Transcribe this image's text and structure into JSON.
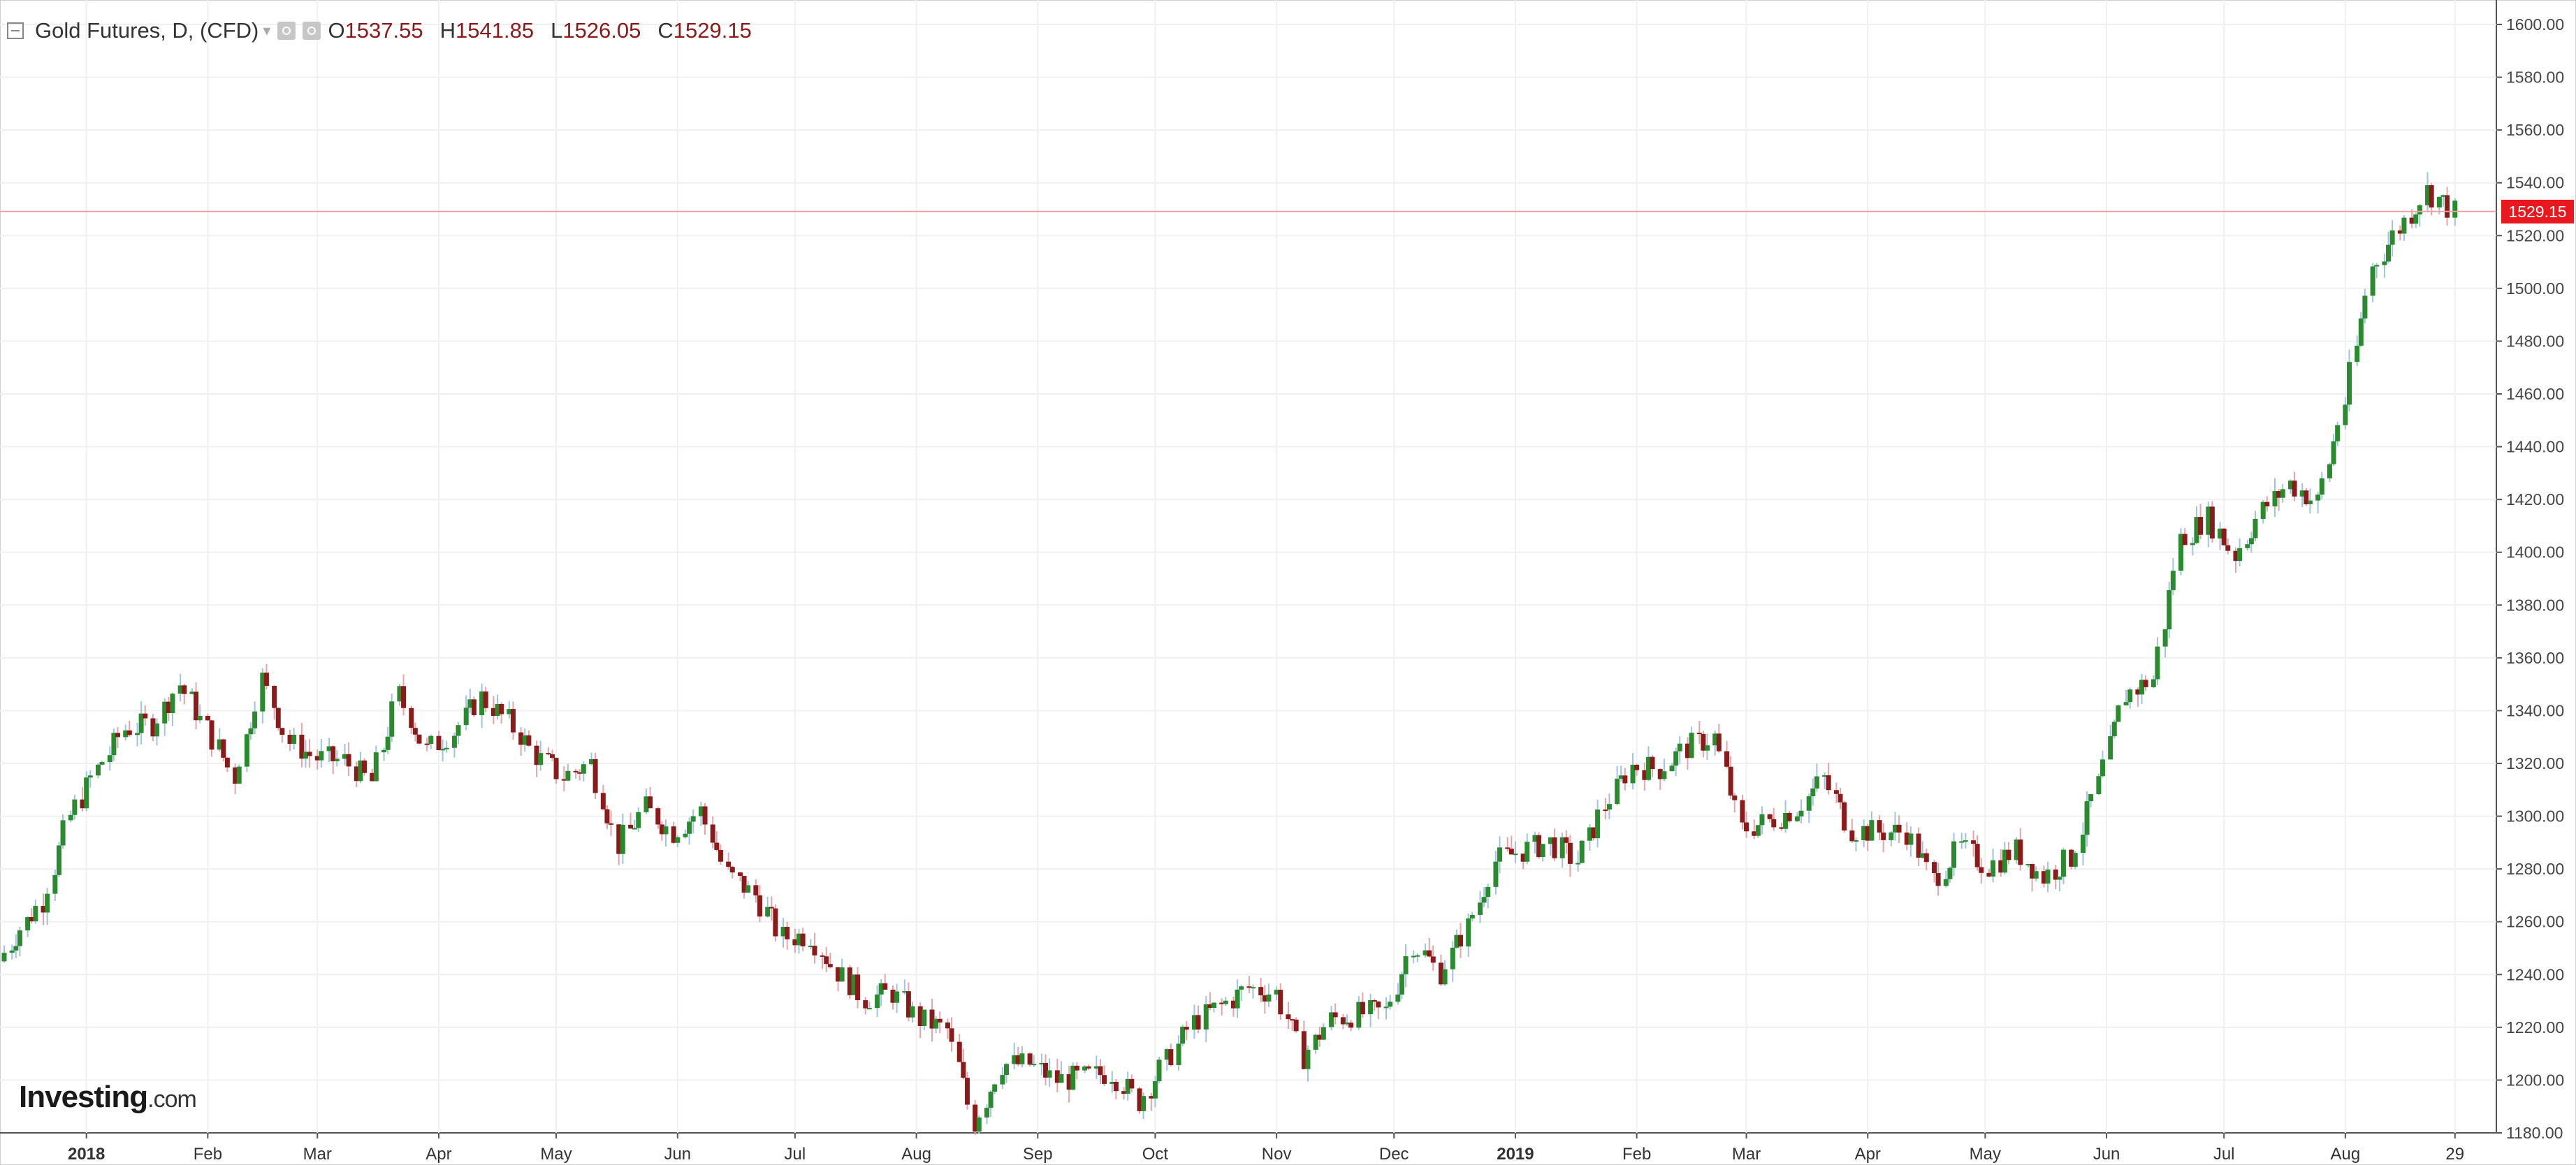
{
  "header": {
    "symbol": "Gold Futures, D, (CFD)",
    "open_label": "O",
    "open_value": "1537.55",
    "high_label": "H",
    "high_value": "1541.85",
    "low_label": "L",
    "low_value": "1526.05",
    "close_label": "C",
    "close_value": "1529.15"
  },
  "logo": {
    "brand": "Investing",
    "suffix": ".com"
  },
  "last_price_label": "1529.15",
  "colors": {
    "up": "#2a8a2e",
    "down": "#8b1a1a",
    "up_wick": "#9ec3e6",
    "down_wick": "#e8a3a8",
    "price_line": "#f0a0a0",
    "price_tag": "#e8181e"
  },
  "chart_data": {
    "type": "candlestick",
    "title": "Gold Futures, D, (CFD)",
    "x_axis": {
      "range": [
        "2017-12-11",
        "2019-09-05"
      ],
      "tick_labels": [
        "2018",
        "Feb",
        "Mar",
        "Apr",
        "May",
        "Jun",
        "Jul",
        "Aug",
        "Sep",
        "Oct",
        "Nov",
        "Dec",
        "2019",
        "Feb",
        "Mar",
        "Apr",
        "May",
        "Jun",
        "Jul",
        "Aug",
        "29"
      ],
      "tick_dates": [
        "2018-01-01",
        "2018-02-01",
        "2018-03-01",
        "2018-04-01",
        "2018-05-01",
        "2018-06-01",
        "2018-07-01",
        "2018-08-01",
        "2018-09-01",
        "2018-10-01",
        "2018-11-01",
        "2018-12-01",
        "2019-01-01",
        "2019-02-01",
        "2019-03-01",
        "2019-04-01",
        "2019-05-01",
        "2019-06-01",
        "2019-07-01",
        "2019-08-01",
        "2019-08-29"
      ]
    },
    "y_axis": {
      "position": "right",
      "range": [
        1180,
        1600
      ],
      "tick_labels": [
        "1180.00",
        "1200.00",
        "1220.00",
        "1240.00",
        "1260.00",
        "1280.00",
        "1300.00",
        "1320.00",
        "1340.00",
        "1360.00",
        "1380.00",
        "1400.00",
        "1420.00",
        "1440.00",
        "1460.00",
        "1480.00",
        "1500.00",
        "1520.00",
        "1540.00",
        "1560.00",
        "1580.00",
        "1600.00"
      ]
    },
    "grid": true,
    "last_price": 1529.15,
    "series_close": [
      {
        "date": "2017-12-11",
        "close": 1245
      },
      {
        "date": "2017-12-15",
        "close": 1255
      },
      {
        "date": "2017-12-22",
        "close": 1268
      },
      {
        "date": "2017-12-29",
        "close": 1300
      },
      {
        "date": "2018-01-05",
        "close": 1318
      },
      {
        "date": "2018-01-12",
        "close": 1333
      },
      {
        "date": "2018-01-19",
        "close": 1335
      },
      {
        "date": "2018-01-26",
        "close": 1350
      },
      {
        "date": "2018-02-02",
        "close": 1333
      },
      {
        "date": "2018-02-09",
        "close": 1315
      },
      {
        "date": "2018-02-16",
        "close": 1352
      },
      {
        "date": "2018-02-23",
        "close": 1328
      },
      {
        "date": "2018-03-02",
        "close": 1322
      },
      {
        "date": "2018-03-09",
        "close": 1321
      },
      {
        "date": "2018-03-16",
        "close": 1313
      },
      {
        "date": "2018-03-23",
        "close": 1346
      },
      {
        "date": "2018-03-30",
        "close": 1325
      },
      {
        "date": "2018-04-06",
        "close": 1332
      },
      {
        "date": "2018-04-13",
        "close": 1345
      },
      {
        "date": "2018-04-20",
        "close": 1336
      },
      {
        "date": "2018-04-27",
        "close": 1323
      },
      {
        "date": "2018-05-04",
        "close": 1315
      },
      {
        "date": "2018-05-11",
        "close": 1320
      },
      {
        "date": "2018-05-18",
        "close": 1289
      },
      {
        "date": "2018-05-25",
        "close": 1303
      },
      {
        "date": "2018-06-01",
        "close": 1294
      },
      {
        "date": "2018-06-08",
        "close": 1302
      },
      {
        "date": "2018-06-15",
        "close": 1278
      },
      {
        "date": "2018-06-22",
        "close": 1270
      },
      {
        "date": "2018-06-29",
        "close": 1254
      },
      {
        "date": "2018-07-06",
        "close": 1255
      },
      {
        "date": "2018-07-13",
        "close": 1241
      },
      {
        "date": "2018-07-20",
        "close": 1231
      },
      {
        "date": "2018-07-27",
        "close": 1233
      },
      {
        "date": "2018-08-03",
        "close": 1223
      },
      {
        "date": "2018-08-10",
        "close": 1219
      },
      {
        "date": "2018-08-17",
        "close": 1184
      },
      {
        "date": "2018-08-24",
        "close": 1206
      },
      {
        "date": "2018-08-31",
        "close": 1206
      },
      {
        "date": "2018-09-07",
        "close": 1200
      },
      {
        "date": "2018-09-14",
        "close": 1201
      },
      {
        "date": "2018-09-21",
        "close": 1203
      },
      {
        "date": "2018-09-28",
        "close": 1192
      },
      {
        "date": "2018-10-05",
        "close": 1207
      },
      {
        "date": "2018-10-12",
        "close": 1222
      },
      {
        "date": "2018-10-19",
        "close": 1228
      },
      {
        "date": "2018-10-26",
        "close": 1235
      },
      {
        "date": "2018-11-02",
        "close": 1233
      },
      {
        "date": "2018-11-09",
        "close": 1209
      },
      {
        "date": "2018-11-16",
        "close": 1223
      },
      {
        "date": "2018-11-23",
        "close": 1225
      },
      {
        "date": "2018-11-30",
        "close": 1226
      },
      {
        "date": "2018-12-07",
        "close": 1252
      },
      {
        "date": "2018-12-14",
        "close": 1241
      },
      {
        "date": "2018-12-21",
        "close": 1258
      },
      {
        "date": "2018-12-28",
        "close": 1283
      },
      {
        "date": "2019-01-04",
        "close": 1287
      },
      {
        "date": "2019-01-11",
        "close": 1290
      },
      {
        "date": "2019-01-18",
        "close": 1283
      },
      {
        "date": "2019-01-25",
        "close": 1304
      },
      {
        "date": "2019-02-01",
        "close": 1319
      },
      {
        "date": "2019-02-08",
        "close": 1318
      },
      {
        "date": "2019-02-15",
        "close": 1326
      },
      {
        "date": "2019-02-22",
        "close": 1330
      },
      {
        "date": "2019-03-01",
        "close": 1295
      },
      {
        "date": "2019-03-08",
        "close": 1298
      },
      {
        "date": "2019-03-15",
        "close": 1303
      },
      {
        "date": "2019-03-22",
        "close": 1314
      },
      {
        "date": "2019-03-29",
        "close": 1295
      },
      {
        "date": "2019-04-05",
        "close": 1294
      },
      {
        "date": "2019-04-12",
        "close": 1294
      },
      {
        "date": "2019-04-19",
        "close": 1276
      },
      {
        "date": "2019-04-26",
        "close": 1288
      },
      {
        "date": "2019-05-03",
        "close": 1281
      },
      {
        "date": "2019-05-10",
        "close": 1287
      },
      {
        "date": "2019-05-17",
        "close": 1277
      },
      {
        "date": "2019-05-24",
        "close": 1284
      },
      {
        "date": "2019-05-31",
        "close": 1312
      },
      {
        "date": "2019-06-07",
        "close": 1346
      },
      {
        "date": "2019-06-14",
        "close": 1352
      },
      {
        "date": "2019-06-21",
        "close": 1405
      },
      {
        "date": "2019-06-28",
        "close": 1413
      },
      {
        "date": "2019-07-05",
        "close": 1399
      },
      {
        "date": "2019-07-12",
        "close": 1416
      },
      {
        "date": "2019-07-19",
        "close": 1426
      },
      {
        "date": "2019-07-26",
        "close": 1419
      },
      {
        "date": "2019-08-02",
        "close": 1457
      },
      {
        "date": "2019-08-09",
        "close": 1508
      },
      {
        "date": "2019-08-16",
        "close": 1523
      },
      {
        "date": "2019-08-23",
        "close": 1537
      },
      {
        "date": "2019-08-30",
        "close": 1529
      }
    ]
  }
}
